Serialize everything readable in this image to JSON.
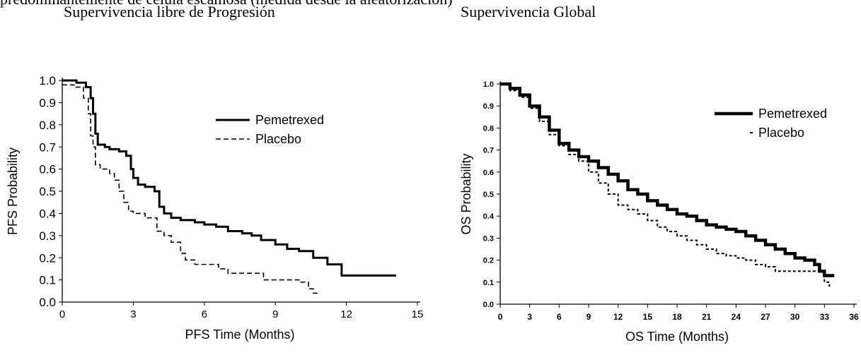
{
  "header": {
    "cut_off_line": "predominantemente de célula escamosa (medida desde la aleatorización)",
    "left_title": "Supervivencia libre de Progresión",
    "right_title": "Supervivencia Global"
  },
  "chart_data": [
    {
      "type": "line",
      "xlabel": "PFS Time (Months)",
      "ylabel": "PFS Probability",
      "xlim": [
        0,
        15
      ],
      "ylim": [
        0,
        1.0
      ],
      "xticks": [
        "0",
        "3",
        "6",
        "9",
        "12",
        "15"
      ],
      "yticks": [
        "0.0",
        "0.1",
        "0.2",
        "0.3",
        "0.4",
        "0.5",
        "0.6",
        "0.7",
        "0.8",
        "0.9",
        "1.0"
      ],
      "legend_position": "top-right",
      "series": [
        {
          "name": "Pemetrexed",
          "style": "solid",
          "x": [
            0,
            0.6,
            1.0,
            1.2,
            1.3,
            1.4,
            1.5,
            1.8,
            2.0,
            2.4,
            2.7,
            2.9,
            3.0,
            3.2,
            3.5,
            3.9,
            4.1,
            4.3,
            4.6,
            5.0,
            5.6,
            6.0,
            6.5,
            7.0,
            7.6,
            8.0,
            8.4,
            9.0,
            9.5,
            10.0,
            10.6,
            11.2,
            11.8,
            14.1
          ],
          "y": [
            1.0,
            0.99,
            0.97,
            0.92,
            0.85,
            0.76,
            0.71,
            0.7,
            0.69,
            0.68,
            0.66,
            0.6,
            0.56,
            0.53,
            0.52,
            0.5,
            0.43,
            0.4,
            0.38,
            0.37,
            0.36,
            0.35,
            0.34,
            0.32,
            0.31,
            0.3,
            0.28,
            0.26,
            0.24,
            0.23,
            0.2,
            0.17,
            0.12,
            0.12
          ]
        },
        {
          "name": "Placebo",
          "style": "dashed",
          "x": [
            0,
            0.5,
            0.9,
            1.1,
            1.2,
            1.3,
            1.4,
            1.6,
            2.0,
            2.2,
            2.4,
            2.6,
            2.8,
            3.0,
            3.5,
            4.0,
            4.3,
            4.6,
            5.0,
            5.2,
            5.6,
            6.0,
            6.6,
            7.0,
            8.0,
            8.5,
            9.0,
            9.6,
            10.0,
            10.4,
            10.6,
            10.8
          ],
          "y": [
            0.98,
            0.97,
            0.92,
            0.85,
            0.75,
            0.7,
            0.62,
            0.6,
            0.58,
            0.55,
            0.5,
            0.45,
            0.41,
            0.4,
            0.38,
            0.32,
            0.3,
            0.27,
            0.22,
            0.19,
            0.17,
            0.17,
            0.15,
            0.13,
            0.13,
            0.1,
            0.1,
            0.1,
            0.09,
            0.06,
            0.04,
            0.04
          ]
        }
      ]
    },
    {
      "type": "line",
      "xlabel": "OS Time (Months)",
      "ylabel": "OS Probability",
      "xlim": [
        0,
        36
      ],
      "ylim": [
        0,
        1.0
      ],
      "xticks": [
        "0",
        "3",
        "6",
        "9",
        "12",
        "15",
        "18",
        "21",
        "24",
        "27",
        "30",
        "33",
        "36"
      ],
      "yticks": [
        "0.0",
        "0.1",
        "0.2",
        "0.3",
        "0.4",
        "0.5",
        "0.6",
        "0.7",
        "0.8",
        "0.9",
        "1.0"
      ],
      "legend_position": "top-right",
      "series": [
        {
          "name": "Pemetrexed",
          "style": "solid",
          "x": [
            0,
            1,
            2,
            3,
            4,
            5,
            6,
            7,
            8,
            9,
            10,
            11,
            12,
            13,
            14,
            15,
            16,
            17,
            18,
            19,
            20,
            21,
            22,
            23,
            24,
            25,
            26,
            27,
            28,
            29,
            30,
            31,
            32,
            32.5,
            33,
            34
          ],
          "y": [
            1.0,
            0.98,
            0.95,
            0.9,
            0.85,
            0.79,
            0.73,
            0.7,
            0.67,
            0.65,
            0.62,
            0.59,
            0.56,
            0.52,
            0.5,
            0.47,
            0.45,
            0.43,
            0.41,
            0.4,
            0.38,
            0.36,
            0.35,
            0.34,
            0.33,
            0.31,
            0.29,
            0.27,
            0.25,
            0.23,
            0.21,
            0.2,
            0.18,
            0.15,
            0.13,
            0.13
          ]
        },
        {
          "name": "Placebo",
          "style": "dotted",
          "x": [
            0,
            1,
            2,
            3,
            4,
            5,
            6,
            7,
            8,
            9,
            10,
            11,
            12,
            13,
            14,
            15,
            16,
            17,
            18,
            19,
            20,
            21,
            22,
            23,
            24,
            25,
            26,
            27,
            28,
            29,
            30,
            31,
            32,
            33,
            33.5
          ],
          "y": [
            1.0,
            0.97,
            0.94,
            0.89,
            0.83,
            0.77,
            0.72,
            0.68,
            0.65,
            0.6,
            0.55,
            0.5,
            0.45,
            0.43,
            0.41,
            0.38,
            0.35,
            0.33,
            0.31,
            0.29,
            0.27,
            0.25,
            0.23,
            0.22,
            0.21,
            0.2,
            0.18,
            0.17,
            0.15,
            0.15,
            0.15,
            0.15,
            0.15,
            0.1,
            0.08
          ]
        }
      ]
    }
  ]
}
